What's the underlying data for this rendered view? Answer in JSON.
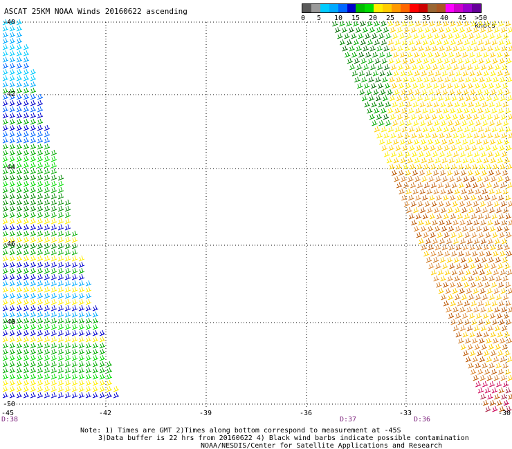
{
  "title": "ASCAT 25KM NOAA Winds 20160622 ascending",
  "legend": {
    "colors": [
      "#5a5a5a",
      "#9a9a9a",
      "#00ccff",
      "#00aaff",
      "#0066ff",
      "#0000cc",
      "#00bb00",
      "#00dd00",
      "#ffee00",
      "#ffcc00",
      "#ff9900",
      "#ff6600",
      "#ff0000",
      "#cc0000",
      "#996633",
      "#aa5522",
      "#ff00ff",
      "#cc00cc",
      "#9900cc",
      "#660099"
    ],
    "labels": [
      "0",
      "5",
      "10",
      "15",
      "20",
      "25",
      "30",
      "35",
      "40",
      "45",
      ">50 knots"
    ]
  },
  "axes": {
    "lat_labels": [
      "-40",
      "-42",
      "-44",
      "-46",
      "-48",
      "-50"
    ],
    "lon_labels": [
      "-42",
      "-39",
      "-36",
      "-33",
      "-30"
    ],
    "left_corner_lat": "-45"
  },
  "times": [
    "D:38",
    "D:37",
    "D:36"
  ],
  "notes": [
    "Note: 1) Times are GMT 2)Times along bottom correspond to measurement at -45S",
    "3)Data buffer is 22 hrs from 20160622 4) Black wind barbs indicate possible contamination",
    "NOAA/NESDIS/Center for Satellite Applications and Research"
  ]
}
